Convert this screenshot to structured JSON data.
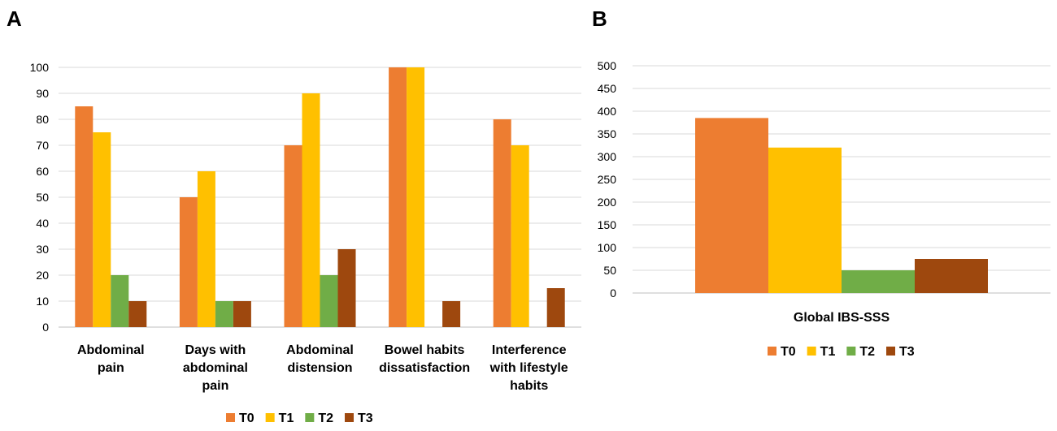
{
  "panels": {
    "a_label": "A",
    "b_label": "B"
  },
  "colors": {
    "T0": "#ED7D31",
    "T1": "#FFC000",
    "T2": "#70AD47",
    "T3": "#9E480E"
  },
  "chart_data": [
    {
      "type": "bar",
      "panel": "A",
      "categories": [
        [
          "Abdominal",
          "pain"
        ],
        [
          "Days with",
          "abdominal",
          "pain"
        ],
        [
          "Abdominal",
          "distension"
        ],
        [
          "Bowel habits",
          "dissatisfaction"
        ],
        [
          "Interference",
          "with lifestyle",
          "habits"
        ]
      ],
      "series": [
        {
          "name": "T0",
          "values": [
            85,
            50,
            70,
            100,
            80
          ]
        },
        {
          "name": "T1",
          "values": [
            75,
            60,
            90,
            100,
            70
          ]
        },
        {
          "name": "T2",
          "values": [
            20,
            10,
            20,
            0,
            0
          ]
        },
        {
          "name": "T3",
          "values": [
            10,
            10,
            30,
            10,
            15
          ]
        }
      ],
      "yticks": [
        0,
        10,
        20,
        30,
        40,
        50,
        60,
        70,
        80,
        90,
        100
      ],
      "ylim": [
        0,
        100
      ],
      "grid": true,
      "legend": "bottom"
    },
    {
      "type": "bar",
      "panel": "B",
      "categories": [
        [
          "Global IBS-SSS"
        ]
      ],
      "series": [
        {
          "name": "T0",
          "values": [
            385
          ]
        },
        {
          "name": "T1",
          "values": [
            320
          ]
        },
        {
          "name": "T2",
          "values": [
            50
          ]
        },
        {
          "name": "T3",
          "values": [
            75
          ]
        }
      ],
      "yticks": [
        0,
        50,
        100,
        150,
        200,
        250,
        300,
        350,
        400,
        450,
        500
      ],
      "ylim": [
        0,
        500
      ],
      "grid": true,
      "legend": "bottom"
    }
  ]
}
